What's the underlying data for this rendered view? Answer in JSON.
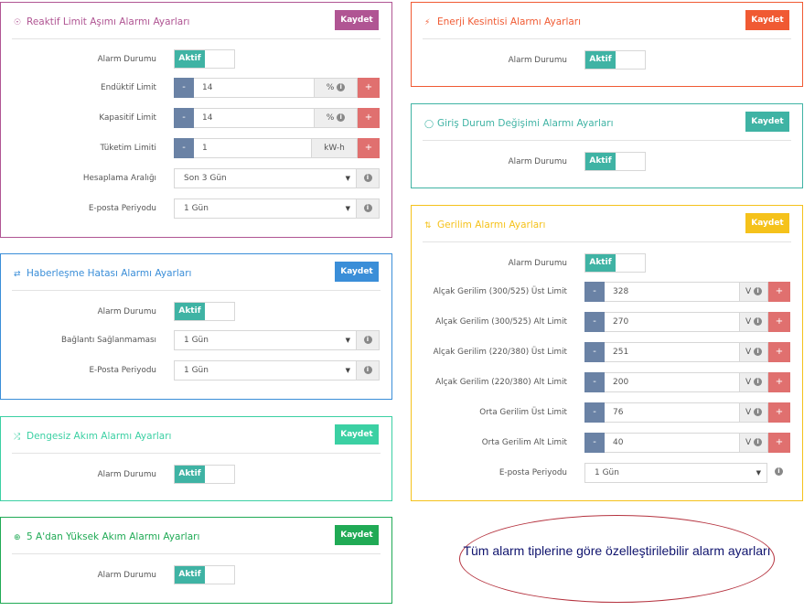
{
  "colors": {
    "reactive": "#b05593",
    "communication": "#3a8ed8",
    "unbalanced": "#3bd0a3",
    "highcurrent": "#20aa55",
    "outage": "#f05a33",
    "input": "#3fb3a4",
    "voltage": "#f5c21b",
    "toggle_on": "#3fb3a4",
    "minus": "#6a82a5",
    "plus": "#e0706f"
  },
  "reactive": {
    "icon": "gauge-icon",
    "title": "Reaktif Limit Aşımı Alarmı Ayarları",
    "save": "Kaydet",
    "alarm_label": "Alarm Durumu",
    "toggle": "Aktif",
    "inductive": {
      "label": "Endüktif Limit",
      "value": "14",
      "unit": "%",
      "minus": "-",
      "plus": "+"
    },
    "capacitive": {
      "label": "Kapasitif Limit",
      "value": "14",
      "unit": "%",
      "minus": "-",
      "plus": "+"
    },
    "consumption": {
      "label": "Tüketim Limiti",
      "value": "1",
      "unit": "kW-h",
      "minus": "-",
      "plus": "+"
    },
    "calc_range": {
      "label": "Hesaplama Aralığı",
      "value": "Son 3 Gün"
    },
    "email_period": {
      "label": "E-posta Periyodu",
      "value": "1 Gün"
    }
  },
  "communication": {
    "icon": "usb-icon",
    "title": "Haberleşme Hatası Alarmı Ayarları",
    "save": "Kaydet",
    "alarm_label": "Alarm Durumu",
    "toggle": "Aktif",
    "connection": {
      "label": "Bağlantı Sağlanmaması",
      "value": "1 Gün"
    },
    "email_period": {
      "label": "E-Posta Periyodu",
      "value": "1 Gün"
    }
  },
  "unbalanced": {
    "icon": "shuffle-icon",
    "title": "Dengesiz Akım Alarmı Ayarları",
    "save": "Kaydet",
    "alarm_label": "Alarm Durumu",
    "toggle": "Aktif"
  },
  "highcurrent": {
    "icon": "plus-circle-icon",
    "title": "5 A'dan Yüksek Akım Alarmı Ayarları",
    "save": "Kaydet",
    "alarm_label": "Alarm Durumu",
    "toggle": "Aktif"
  },
  "outage": {
    "icon": "plug-icon",
    "title": "Enerji Kesintisi Alarmı Ayarları",
    "save": "Kaydet",
    "alarm_label": "Alarm Durumu",
    "toggle": "Aktif"
  },
  "input": {
    "icon": "toggle-icon",
    "title": "Giriş Durum Değişimi Alarmı Ayarları",
    "save": "Kaydet",
    "alarm_label": "Alarm Durumu",
    "toggle": "Aktif"
  },
  "voltage": {
    "icon": "swap-icon",
    "title": "Gerilim Alarmı Ayarları",
    "save": "Kaydet",
    "alarm_label": "Alarm Durumu",
    "toggle": "Aktif",
    "rows": [
      {
        "label": "Alçak Gerilim (300/525) Üst Limit",
        "value": "328",
        "unit": "V",
        "minus": "-",
        "plus": "+"
      },
      {
        "label": "Alçak Gerilim (300/525) Alt Limit",
        "value": "270",
        "unit": "V",
        "minus": "-",
        "plus": "+"
      },
      {
        "label": "Alçak Gerilim (220/380) Üst Limit",
        "value": "251",
        "unit": "V",
        "minus": "-",
        "plus": "+"
      },
      {
        "label": "Alçak Gerilim (220/380) Alt Limit",
        "value": "200",
        "unit": "V",
        "minus": "-",
        "plus": "+"
      },
      {
        "label": "Orta Gerilim Üst Limit",
        "value": "76",
        "unit": "V",
        "minus": "-",
        "plus": "+"
      },
      {
        "label": "Orta Gerilim Alt Limit",
        "value": "40",
        "unit": "V",
        "minus": "-",
        "plus": "+"
      }
    ],
    "email_period": {
      "label": "E-posta Periyodu",
      "value": "1 Gün"
    }
  },
  "note": "Tüm alarm tiplerine göre özelleştirilebilir alarm ayarları"
}
